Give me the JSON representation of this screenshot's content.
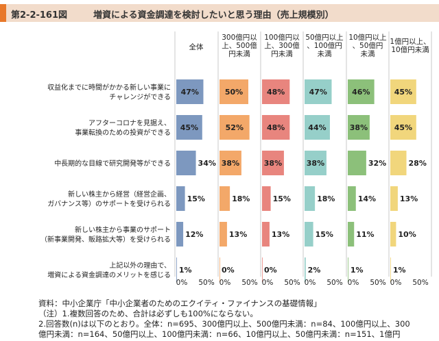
{
  "header": {
    "figure_number": "第2-2-161図",
    "title": "増資による資金調達を検討したいと思う理由（売上規模別）"
  },
  "chart_data": {
    "type": "bar",
    "orientation": "horizontal",
    "title": "増資による資金調達を検討したいと思う理由（売上規模別）",
    "categories": [
      [
        "収益化までに時間がかかる新しい事業に",
        "チャレンジができる"
      ],
      [
        "アフターコロナを見据え、",
        "事業転換のための投資ができる"
      ],
      [
        "中長期的な目線で研究開発等ができる"
      ],
      [
        "新しい株主から経営（経営企画、",
        "ガバナンス等）のサポートを受けられる"
      ],
      [
        "新しい株主から事業のサポート",
        "（新事業開発、販路拡大等）を受けられる"
      ],
      [
        "上記以外の理由で、",
        "増資による資金調達のメリットを感じる"
      ]
    ],
    "series": [
      {
        "name": [
          "全体"
        ],
        "color": "#7d98bf",
        "values": [
          47,
          45,
          34,
          15,
          12,
          1
        ]
      },
      {
        "name": [
          "300億円以",
          "上、500億",
          "円未満"
        ],
        "color": "#f3a869",
        "values": [
          50,
          52,
          38,
          18,
          13,
          0
        ]
      },
      {
        "name": [
          "100億円以",
          "上、300億",
          "円未満"
        ],
        "color": "#e8857e",
        "values": [
          48,
          48,
          38,
          15,
          13,
          0
        ]
      },
      {
        "name": [
          "50億円以上",
          "、100億円",
          "未満"
        ],
        "color": "#96cfc9",
        "values": [
          47,
          44,
          38,
          18,
          15,
          2
        ]
      },
      {
        "name": [
          "10億円以上",
          "、50億円",
          "未満"
        ],
        "color": "#8cc07a",
        "values": [
          46,
          38,
          32,
          14,
          11,
          1
        ]
      },
      {
        "name": [
          "1億円以上、",
          "10億円未満"
        ],
        "color": "#f1d67c",
        "values": [
          45,
          45,
          28,
          13,
          10,
          1
        ]
      }
    ],
    "value_suffix": "%",
    "xlim": [
      0,
      50
    ],
    "xticks": [
      "0%",
      "50%"
    ]
  },
  "notes": [
    "資料：中小企業庁「中小企業者のためのエクイティ・ファイナンスの基礎情報」",
    "（注）1.複数回答のため、合計は必ずしも100%にならない。",
    "2.回答数(n)は以下のとおり。全体：n=695、300億円以上、500億円未満：n=84、100億円以上、300",
    "億円未満：n=164、50億円以上、100億円未満：n=66、10億円以上、50億円未満：n=151、1億円"
  ]
}
